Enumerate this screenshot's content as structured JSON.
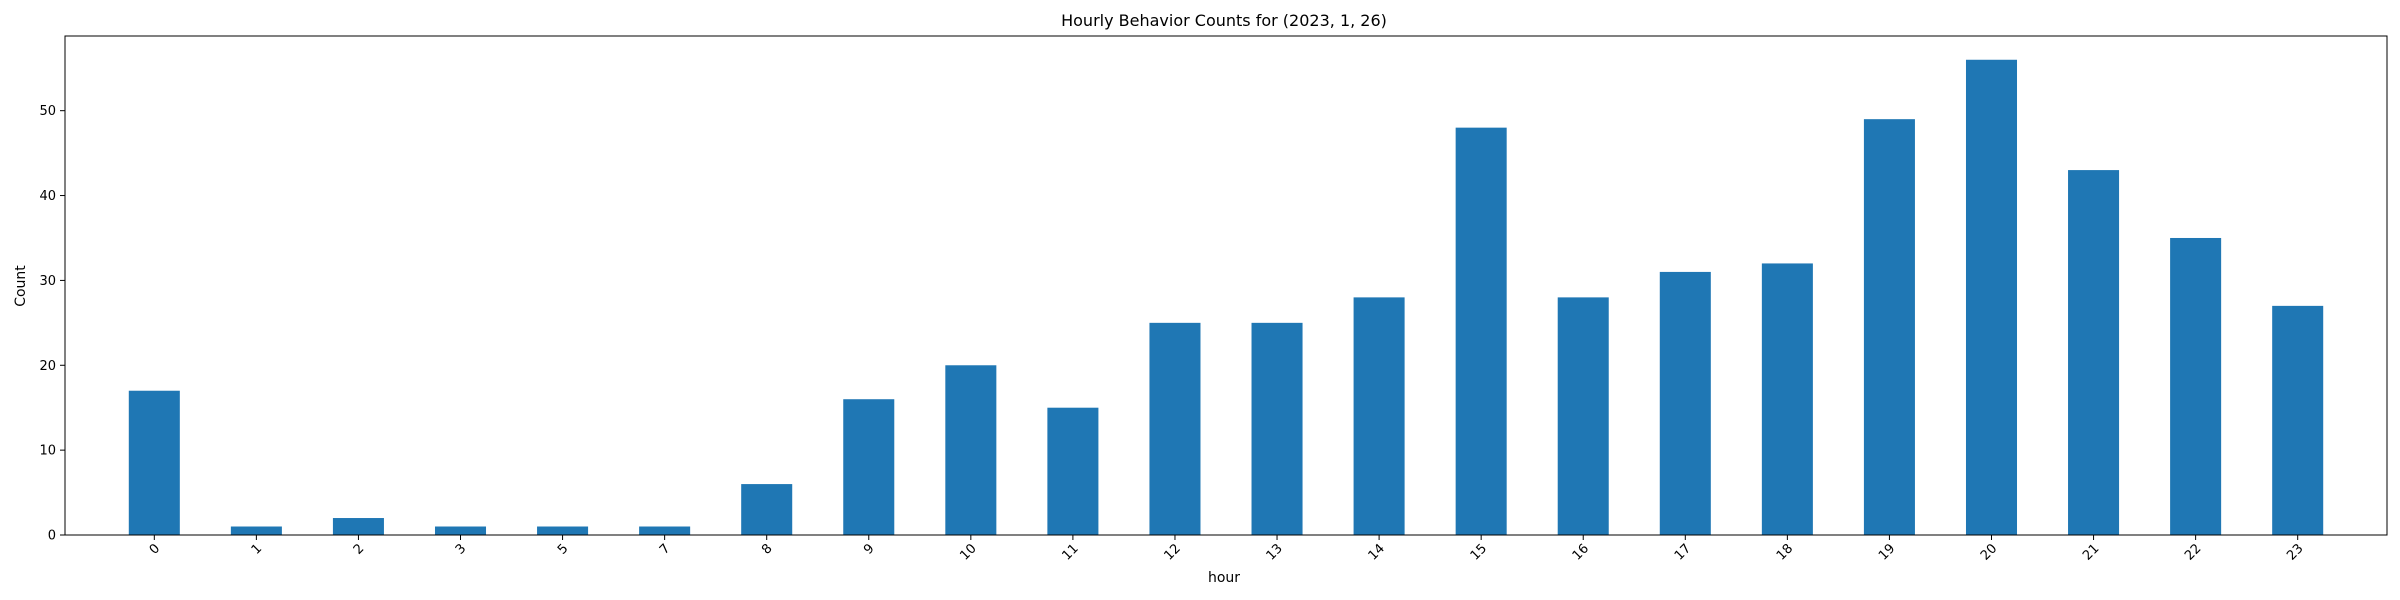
{
  "chart_data": {
    "type": "bar",
    "title": "Hourly Behavior Counts for (2023, 1, 26)",
    "xlabel": "hour",
    "ylabel": "Count",
    "categories": [
      "0",
      "1",
      "2",
      "3",
      "5",
      "7",
      "8",
      "9",
      "10",
      "11",
      "12",
      "13",
      "14",
      "15",
      "16",
      "17",
      "18",
      "19",
      "20",
      "21",
      "22",
      "23"
    ],
    "values": [
      17,
      1,
      2,
      1,
      1,
      1,
      6,
      16,
      20,
      15,
      25,
      25,
      28,
      48,
      28,
      31,
      32,
      49,
      56,
      43,
      35,
      27
    ],
    "ylim": [
      0,
      58.8
    ],
    "yticks": [
      0,
      10,
      20,
      30,
      40,
      50
    ],
    "bar_color": "#1f77b4",
    "grid": false,
    "legend": "none"
  }
}
